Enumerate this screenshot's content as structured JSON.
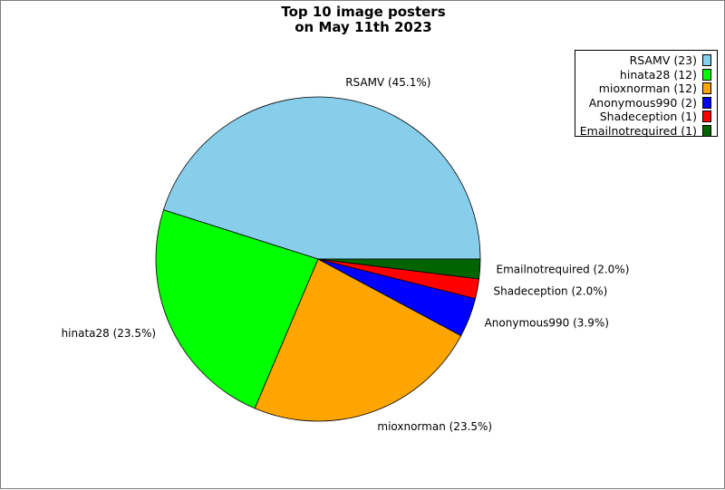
{
  "chart_data": {
    "type": "pie",
    "title": "Top 10 image posters\non May 11th 2023",
    "slices": [
      {
        "name": "RSAMV",
        "count": 23,
        "legend": "RSAMV (23)",
        "label": "RSAMV (45.1%)",
        "color": "#87ceeb"
      },
      {
        "name": "hinata28",
        "count": 12,
        "legend": "hinata28 (12)",
        "label": "hinata28 (23.5%)",
        "color": "#00ff00"
      },
      {
        "name": "mioxnorman",
        "count": 12,
        "legend": "mioxnorman (12)",
        "label": "mioxnorman (23.5%)",
        "color": "#ffa500"
      },
      {
        "name": "Anonymous990",
        "count": 2,
        "legend": "Anonymous990 (2)",
        "label": "Anonymous990 (3.9%)",
        "color": "#0000ff"
      },
      {
        "name": "Shadeception",
        "count": 1,
        "legend": "Shadeception (1)",
        "label": "Shadeception (2.0%)",
        "color": "#ff0000"
      },
      {
        "name": "Emailnotrequired",
        "count": 1,
        "legend": "Emailnotrequired (1)",
        "label": "Emailnotrequired (2.0%)",
        "color": "#006400"
      }
    ],
    "start_angle": 0,
    "direction": "counterclockwise",
    "legend_position": "top-right"
  }
}
